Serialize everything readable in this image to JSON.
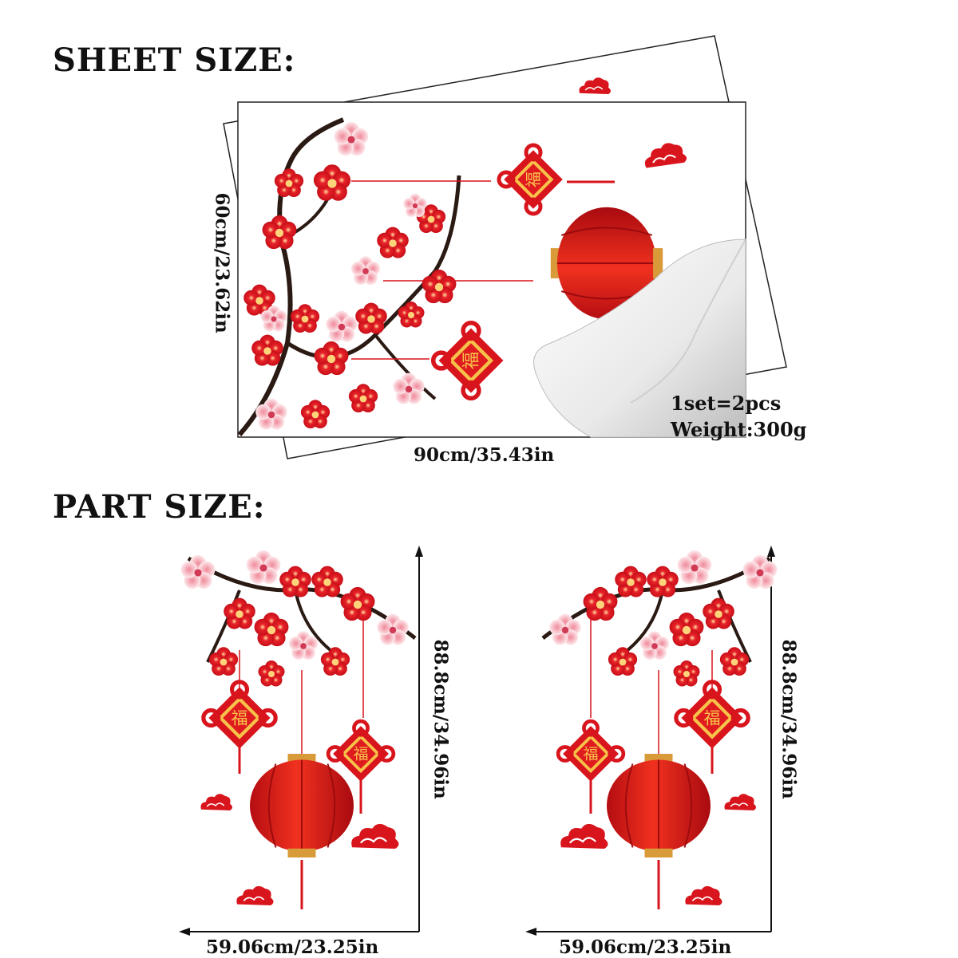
{
  "sheet_heading": "SHEET SIZE:",
  "part_heading": "PART SIZE:",
  "sheet": {
    "height_label": "60cm/23.62in",
    "width_label": "90cm/35.43in",
    "set_label": "1set=2pcs",
    "weight_label": "Weight:300g"
  },
  "parts": [
    {
      "height_label": "88.8cm/34.96in",
      "width_label": "59.06cm/23.25in"
    },
    {
      "height_label": "88.8cm/34.96in",
      "width_label": "59.06cm/23.25in"
    }
  ],
  "colors": {
    "accent_red": "#d8141c",
    "blossom_pink": "#f6c9cf",
    "gold": "#e8a83a",
    "branch": "#2b1a14"
  }
}
